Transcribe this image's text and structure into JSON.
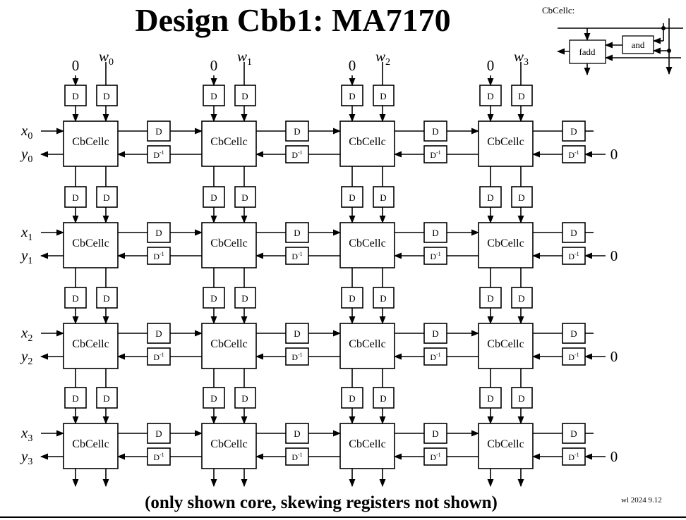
{
  "title": "Design Cbb1: MA7170",
  "caption": "(only shown core, skewing registers not shown)",
  "footer": "wl 2024  9.12",
  "cell_label": "CbCellc",
  "reg_label": "D",
  "reg_inv_label": "D",
  "reg_inv_sup": "-1",
  "zero": "0",
  "inputs_top": [
    {
      "sym": "w",
      "sub": "0"
    },
    {
      "sym": "w",
      "sub": "1"
    },
    {
      "sym": "w",
      "sub": "2"
    },
    {
      "sym": "w",
      "sub": "3"
    }
  ],
  "rows": [
    {
      "x_sym": "x",
      "x_sub": "0",
      "y_sym": "y",
      "y_sub": "0"
    },
    {
      "x_sym": "x",
      "x_sub": "1",
      "y_sym": "y",
      "y_sub": "1"
    },
    {
      "x_sym": "x",
      "x_sub": "2",
      "y_sym": "y",
      "y_sub": "2"
    },
    {
      "x_sym": "x",
      "x_sub": "3",
      "y_sym": "y",
      "y_sub": "3"
    }
  ],
  "legend": {
    "title": "CbCellc:",
    "fadd": "fadd",
    "and": "and"
  }
}
